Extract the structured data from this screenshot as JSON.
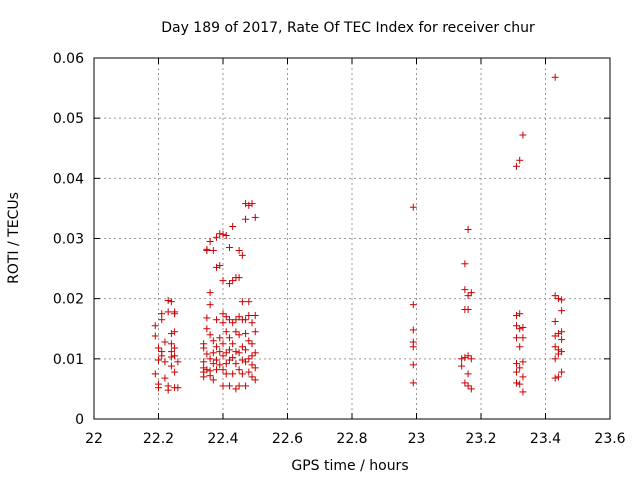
{
  "chart_data": {
    "type": "scatter",
    "title": "Day 189 of 2017, Rate Of TEC Index for receiver chur",
    "xlabel": "GPS time / hours",
    "ylabel": "ROTI / TECUs",
    "xlim": [
      22,
      23.6
    ],
    "ylim": [
      0,
      0.06
    ],
    "x_ticks": [
      "22",
      "22.2",
      "22.4",
      "22.6",
      "22.8",
      "23",
      "23.2",
      "23.4",
      "23.6"
    ],
    "y_ticks": [
      "0",
      "0.01",
      "0.02",
      "0.03",
      "0.04",
      "0.05",
      "0.06"
    ],
    "grid": true,
    "marker": "+",
    "color": "#cc0000",
    "series": [
      {
        "points": [
          [
            22.19,
            0.0155
          ],
          [
            22.19,
            0.0138
          ],
          [
            22.2,
            0.0118
          ],
          [
            22.2,
            0.0098
          ],
          [
            22.19,
            0.0075
          ],
          [
            22.2,
            0.0058
          ],
          [
            22.2,
            0.0052
          ],
          [
            22.21,
            0.0165
          ],
          [
            22.21,
            0.0175
          ],
          [
            22.21,
            0.0112
          ],
          [
            22.21,
            0.0105
          ],
          [
            22.22,
            0.0128
          ],
          [
            22.22,
            0.0095
          ],
          [
            22.22,
            0.0068
          ],
          [
            22.23,
            0.0055
          ],
          [
            22.23,
            0.0048
          ],
          [
            22.23,
            0.0197
          ],
          [
            22.24,
            0.0195
          ],
          [
            22.23,
            0.0178
          ],
          [
            22.24,
            0.0142
          ],
          [
            22.24,
            0.0125
          ],
          [
            22.24,
            0.0112
          ],
          [
            22.24,
            0.0103
          ],
          [
            22.24,
            0.0088
          ],
          [
            22.25,
            0.0178
          ],
          [
            22.25,
            0.0175
          ],
          [
            22.25,
            0.0145
          ],
          [
            22.25,
            0.0118
          ],
          [
            22.25,
            0.0105
          ],
          [
            22.25,
            0.0078
          ],
          [
            22.25,
            0.0052
          ],
          [
            22.26,
            0.0095
          ],
          [
            22.26,
            0.0052
          ],
          [
            22.34,
            0.0125
          ],
          [
            22.34,
            0.0118
          ],
          [
            22.34,
            0.0095
          ],
          [
            22.34,
            0.0085
          ],
          [
            22.34,
            0.0078
          ],
          [
            22.34,
            0.007
          ],
          [
            22.35,
            0.028
          ],
          [
            22.35,
            0.0282
          ],
          [
            22.35,
            0.0168
          ],
          [
            22.35,
            0.015
          ],
          [
            22.35,
            0.0108
          ],
          [
            22.35,
            0.0082
          ],
          [
            22.36,
            0.0295
          ],
          [
            22.36,
            0.021
          ],
          [
            22.36,
            0.019
          ],
          [
            22.36,
            0.014
          ],
          [
            22.36,
            0.01
          ],
          [
            22.36,
            0.008
          ],
          [
            22.36,
            0.0072
          ],
          [
            22.37,
            0.028
          ],
          [
            22.37,
            0.013
          ],
          [
            22.37,
            0.011
          ],
          [
            22.37,
            0.0092
          ],
          [
            22.37,
            0.0065
          ],
          [
            22.38,
            0.0302
          ],
          [
            22.38,
            0.0252
          ],
          [
            22.38,
            0.0165
          ],
          [
            22.38,
            0.012
          ],
          [
            22.38,
            0.0098
          ],
          [
            22.38,
            0.0082
          ],
          [
            22.39,
            0.0308
          ],
          [
            22.39,
            0.0255
          ],
          [
            22.39,
            0.0135
          ],
          [
            22.39,
            0.0112
          ],
          [
            22.39,
            0.009
          ],
          [
            22.4,
            0.0307
          ],
          [
            22.4,
            0.023
          ],
          [
            22.4,
            0.0175
          ],
          [
            22.4,
            0.016
          ],
          [
            22.4,
            0.0125
          ],
          [
            22.4,
            0.0105
          ],
          [
            22.4,
            0.0082
          ],
          [
            22.4,
            0.0055
          ],
          [
            22.41,
            0.0305
          ],
          [
            22.41,
            0.017
          ],
          [
            22.41,
            0.0145
          ],
          [
            22.41,
            0.011
          ],
          [
            22.41,
            0.0092
          ],
          [
            22.41,
            0.0075
          ],
          [
            22.42,
            0.0285
          ],
          [
            22.42,
            0.0225
          ],
          [
            22.42,
            0.0165
          ],
          [
            22.42,
            0.0135
          ],
          [
            22.42,
            0.0115
          ],
          [
            22.42,
            0.0098
          ],
          [
            22.42,
            0.0055
          ],
          [
            22.43,
            0.032
          ],
          [
            22.43,
            0.023
          ],
          [
            22.43,
            0.016
          ],
          [
            22.43,
            0.0125
          ],
          [
            22.43,
            0.0102
          ],
          [
            22.43,
            0.0075
          ],
          [
            22.44,
            0.0235
          ],
          [
            22.44,
            0.0165
          ],
          [
            22.44,
            0.0145
          ],
          [
            22.44,
            0.0112
          ],
          [
            22.44,
            0.0092
          ],
          [
            22.44,
            0.005
          ],
          [
            22.45,
            0.028
          ],
          [
            22.45,
            0.0235
          ],
          [
            22.45,
            0.017
          ],
          [
            22.45,
            0.014
          ],
          [
            22.45,
            0.011
          ],
          [
            22.45,
            0.0082
          ],
          [
            22.45,
            0.0055
          ],
          [
            22.46,
            0.0272
          ],
          [
            22.46,
            0.0195
          ],
          [
            22.46,
            0.0165
          ],
          [
            22.46,
            0.012
          ],
          [
            22.46,
            0.0098
          ],
          [
            22.46,
            0.0075
          ],
          [
            22.47,
            0.0332
          ],
          [
            22.47,
            0.0358
          ],
          [
            22.47,
            0.0165
          ],
          [
            22.47,
            0.0142
          ],
          [
            22.47,
            0.0115
          ],
          [
            22.47,
            0.0095
          ],
          [
            22.47,
            0.0055
          ],
          [
            22.48,
            0.0355
          ],
          [
            22.48,
            0.0195
          ],
          [
            22.48,
            0.0172
          ],
          [
            22.48,
            0.013
          ],
          [
            22.48,
            0.01
          ],
          [
            22.48,
            0.0078
          ],
          [
            22.49,
            0.0358
          ],
          [
            22.49,
            0.016
          ],
          [
            22.49,
            0.0125
          ],
          [
            22.49,
            0.0105
          ],
          [
            22.49,
            0.009
          ],
          [
            22.49,
            0.007
          ],
          [
            22.5,
            0.0335
          ],
          [
            22.5,
            0.0172
          ],
          [
            22.5,
            0.0145
          ],
          [
            22.5,
            0.011
          ],
          [
            22.5,
            0.0085
          ],
          [
            22.5,
            0.0065
          ],
          [
            22.99,
            0.0352
          ],
          [
            22.99,
            0.019
          ],
          [
            22.99,
            0.0148
          ],
          [
            22.99,
            0.0128
          ],
          [
            22.99,
            0.012
          ],
          [
            22.99,
            0.009
          ],
          [
            22.99,
            0.006
          ],
          [
            23.14,
            0.01
          ],
          [
            23.14,
            0.0088
          ],
          [
            23.15,
            0.0258
          ],
          [
            23.15,
            0.0215
          ],
          [
            23.15,
            0.0182
          ],
          [
            23.15,
            0.0102
          ],
          [
            23.15,
            0.006
          ],
          [
            23.16,
            0.0315
          ],
          [
            23.16,
            0.0205
          ],
          [
            23.16,
            0.0182
          ],
          [
            23.16,
            0.0105
          ],
          [
            23.16,
            0.0075
          ],
          [
            23.16,
            0.0055
          ],
          [
            23.17,
            0.021
          ],
          [
            23.17,
            0.01
          ],
          [
            23.17,
            0.005
          ],
          [
            23.31,
            0.042
          ],
          [
            23.31,
            0.0172
          ],
          [
            23.31,
            0.0155
          ],
          [
            23.31,
            0.0135
          ],
          [
            23.31,
            0.0092
          ],
          [
            23.31,
            0.0078
          ],
          [
            23.31,
            0.006
          ],
          [
            23.32,
            0.043
          ],
          [
            23.32,
            0.0175
          ],
          [
            23.32,
            0.015
          ],
          [
            23.32,
            0.012
          ],
          [
            23.32,
            0.0085
          ],
          [
            23.32,
            0.0058
          ],
          [
            23.33,
            0.0472
          ],
          [
            23.33,
            0.0152
          ],
          [
            23.33,
            0.0135
          ],
          [
            23.33,
            0.0095
          ],
          [
            23.33,
            0.007
          ],
          [
            23.33,
            0.0045
          ],
          [
            23.43,
            0.0568
          ],
          [
            23.43,
            0.0205
          ],
          [
            23.43,
            0.0162
          ],
          [
            23.43,
            0.0138
          ],
          [
            23.43,
            0.012
          ],
          [
            23.43,
            0.01
          ],
          [
            23.43,
            0.0068
          ],
          [
            23.44,
            0.02
          ],
          [
            23.44,
            0.0142
          ],
          [
            23.44,
            0.0115
          ],
          [
            23.44,
            0.0108
          ],
          [
            23.44,
            0.007
          ],
          [
            23.45,
            0.0198
          ],
          [
            23.45,
            0.018
          ],
          [
            23.45,
            0.0145
          ],
          [
            23.45,
            0.0132
          ],
          [
            23.45,
            0.0112
          ],
          [
            23.45,
            0.0078
          ]
        ]
      }
    ]
  }
}
